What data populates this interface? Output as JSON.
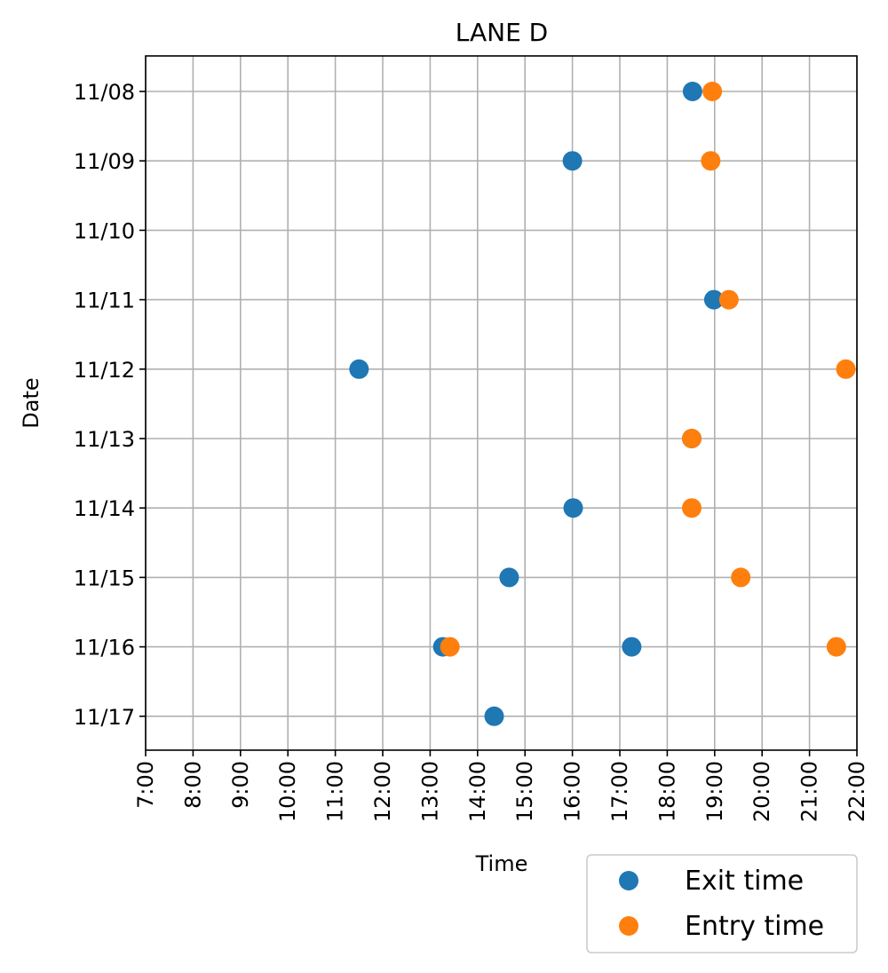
{
  "chart_data": {
    "type": "scatter",
    "title": "LANE D",
    "xlabel": "Time",
    "ylabel": "Date",
    "x_ticks": [
      "7:00",
      "8:00",
      "9:00",
      "10:00",
      "11:00",
      "12:00",
      "13:00",
      "14:00",
      "15:00",
      "16:00",
      "17:00",
      "18:00",
      "19:00",
      "20:00",
      "21:00",
      "22:00"
    ],
    "xlim": [
      "7:00",
      "22:00"
    ],
    "y_categories": [
      "11/08",
      "11/09",
      "11/10",
      "11/11",
      "11/12",
      "11/13",
      "11/14",
      "11/15",
      "11/16",
      "11/17"
    ],
    "grid": true,
    "legend_position": "bottom-right, outside plot",
    "series": [
      {
        "name": "Exit time",
        "color": "#1f77b4",
        "points": [
          {
            "date": "11/08",
            "time": "18:32"
          },
          {
            "date": "11/09",
            "time": "16:00"
          },
          {
            "date": "11/11",
            "time": "18:59"
          },
          {
            "date": "11/12",
            "time": "11:30"
          },
          {
            "date": "11/13",
            "time": "18:31"
          },
          {
            "date": "11/14",
            "time": "16:01"
          },
          {
            "date": "11/15",
            "time": "14:40"
          },
          {
            "date": "11/16",
            "time": "13:16"
          },
          {
            "date": "11/16",
            "time": "17:15"
          },
          {
            "date": "11/17",
            "time": "14:21"
          }
        ]
      },
      {
        "name": "Entry time",
        "color": "#ff7f0e",
        "points": [
          {
            "date": "11/08",
            "time": "18:57"
          },
          {
            "date": "11/09",
            "time": "18:55"
          },
          {
            "date": "11/11",
            "time": "19:18"
          },
          {
            "date": "11/12",
            "time": "21:46"
          },
          {
            "date": "11/13",
            "time": "18:31"
          },
          {
            "date": "11/14",
            "time": "18:31"
          },
          {
            "date": "11/15",
            "time": "19:33"
          },
          {
            "date": "11/16",
            "time": "13:25"
          },
          {
            "date": "11/16",
            "time": "21:34"
          }
        ]
      }
    ]
  }
}
